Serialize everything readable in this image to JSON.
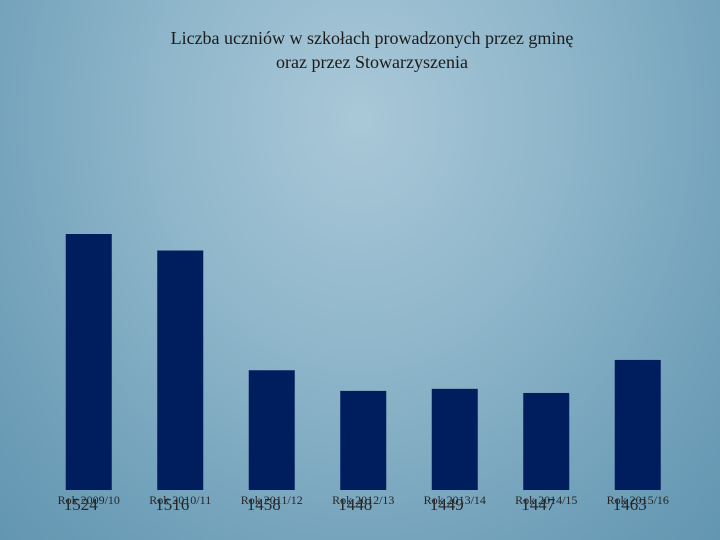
{
  "chart_data": {
    "type": "bar",
    "title": [
      "Liczba uczniów w szkołach prowadzonych przez gminę",
      "oraz przez Stowarzyszenia"
    ],
    "categories": [
      "Rok 2009/10",
      "Rok 2010/11",
      "Rok 2011/12",
      "Rok 2012/13",
      "Rok 2013/14",
      "Rok 2014/15",
      "Rok 2015/16"
    ],
    "values": [
      1524,
      1516,
      1458,
      1448,
      1449,
      1447,
      1463
    ],
    "ylim": [
      1400,
      1540
    ],
    "grid": false,
    "legend": "none",
    "colors": {
      "bar": "#001d5e"
    }
  }
}
